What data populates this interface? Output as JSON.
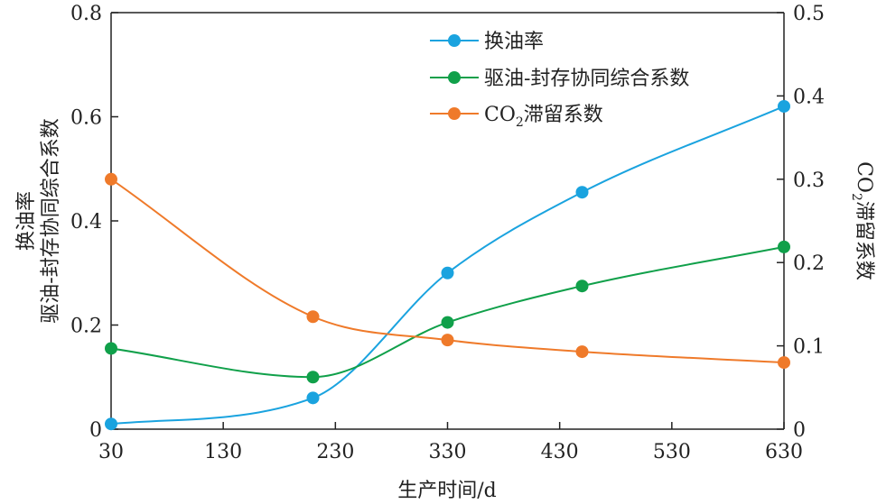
{
  "chart_data": {
    "type": "line",
    "x": [
      30,
      210,
      330,
      450,
      630
    ],
    "xlabel": "生产时间/d",
    "xticks": [
      "30",
      "130",
      "230",
      "330",
      "430",
      "530",
      "630"
    ],
    "xlim": [
      30,
      630
    ],
    "ylabel_left_line1": "换油率",
    "ylabel_left_line2": "驱油-封存协同综合系数",
    "ylim_left": [
      0,
      0.8
    ],
    "yticks_left": [
      "0",
      "0.2",
      "0.4",
      "0.6",
      "0.8"
    ],
    "ylabel_right_main": "CO",
    "ylabel_right_sub": "2",
    "ylabel_right_rest": "滞留系数",
    "ylim_right": [
      0,
      0.5
    ],
    "yticks_right": [
      "0",
      "0.1",
      "0.2",
      "0.3",
      "0.4",
      "0.5"
    ],
    "legend_position": "top-center",
    "grid": false,
    "series": [
      {
        "name": "换油率",
        "axis": "left",
        "color": "#1aa3df",
        "values": [
          0.01,
          0.06,
          0.3,
          0.455,
          0.62
        ]
      },
      {
        "name": "驱油-封存协同综合系数",
        "axis": "left",
        "color": "#10a04a",
        "values": [
          0.155,
          0.1,
          0.205,
          0.275,
          0.35
        ]
      },
      {
        "name": "CO",
        "name_sub": "2",
        "name_rest": "滞留系数",
        "axis": "right",
        "color": "#ef7a2a",
        "values": [
          0.3,
          0.135,
          0.107,
          0.093,
          0.08
        ]
      }
    ]
  }
}
